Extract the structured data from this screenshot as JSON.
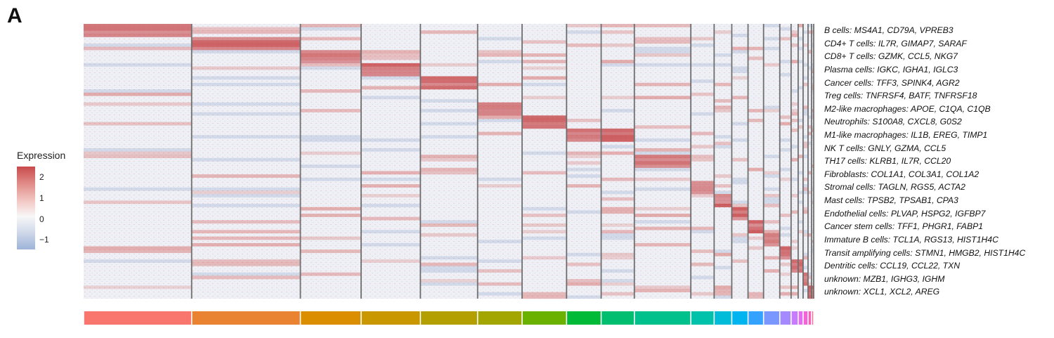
{
  "panel_label": "A",
  "chart_data": {
    "type": "heatmap",
    "title": "",
    "legend": {
      "title": "Expression",
      "ticks": [
        "2",
        "1",
        "0",
        "−1"
      ],
      "tick_values": [
        2,
        1,
        0,
        -1
      ],
      "range": [
        -1.5,
        2.5
      ],
      "colors": {
        "high": "#c84a4c",
        "mid": "#f7f7f7",
        "low": "#9db3d8"
      }
    },
    "rows": [
      "B cells: MS4A1, CD79A, VPREB3",
      "CD4+ T cells: IL7R, GIMAP7, SARAF",
      "CD8+ T cells: GZMK, CCL5, NKG7",
      "Plasma cells: IGKC, IGHA1, IGLC3",
      "Cancer cells: TFF3, SPINK4, AGR2",
      "Treg cells: TNFRSF4, BATF, TNFRSF18",
      "M2-like macrophages: APOE, C1QA, C1QB",
      "Neutrophils: S100A8, CXCL8, G0S2",
      "M1-like macrophages: IL1B, EREG, TIMP1",
      "NK T cells: GNLY, GZMA, CCL5",
      "TH17 cells: KLRB1, IL7R, CCL20",
      "Fibroblasts: COL1A1, COL3A1, COL1A2",
      "Stromal cells: TAGLN, RGS5, ACTA2",
      "Mast cells: TPSB2, TPSAB1, CPA3",
      "Endothelial cells: PLVAP, HSPG2, IGFBP7",
      "Cancer stem cells: TFF1, PHGR1, FABP1",
      "Immature B cells: TCL1A, RGS13, HIST1H4C",
      "Transit amplifying cells: STMN1, HMGB2, HIST1H4C",
      "Dentritic cells: CCL19, CCL22, TXN",
      "unknown: MZB1, IGHG3, IGHM",
      "unknown: XCL1, XCL2, AREG"
    ],
    "clusters": [
      {
        "index": 1,
        "relative_size": 153,
        "color": "#f8766d",
        "marker_row": 0
      },
      {
        "index": 2,
        "relative_size": 154,
        "color": "#ea8331",
        "marker_row": 1
      },
      {
        "index": 3,
        "relative_size": 86,
        "color": "#db8e00",
        "marker_row": 2
      },
      {
        "index": 4,
        "relative_size": 84,
        "color": "#c99800",
        "marker_row": 3
      },
      {
        "index": 5,
        "relative_size": 81,
        "color": "#b3a000",
        "marker_row": 4
      },
      {
        "index": 6,
        "relative_size": 63,
        "color": "#a3a500",
        "marker_row": 6
      },
      {
        "index": 7,
        "relative_size": 63,
        "color": "#6bb100",
        "marker_row": 7
      },
      {
        "index": 8,
        "relative_size": 49,
        "color": "#00ba38",
        "marker_row": 8
      },
      {
        "index": 9,
        "relative_size": 47,
        "color": "#00be70",
        "marker_row": 8
      },
      {
        "index": 10,
        "relative_size": 80,
        "color": "#00c08b",
        "marker_row": 10
      },
      {
        "index": 11,
        "relative_size": 33,
        "color": "#00c1aa",
        "marker_row": 12
      },
      {
        "index": 12,
        "relative_size": 25,
        "color": "#00bcd8",
        "marker_row": 13
      },
      {
        "index": 13,
        "relative_size": 23,
        "color": "#00b4f0",
        "marker_row": 14
      },
      {
        "index": 14,
        "relative_size": 22,
        "color": "#35a2ff",
        "marker_row": 15
      },
      {
        "index": 15,
        "relative_size": 23,
        "color": "#7997ff",
        "marker_row": 16
      },
      {
        "index": 16,
        "relative_size": 16,
        "color": "#a58aff",
        "marker_row": 17
      },
      {
        "index": 17,
        "relative_size": 10,
        "color": "#c77cff",
        "marker_row": 18
      },
      {
        "index": 18,
        "relative_size": 7,
        "color": "#e36cf0",
        "marker_row": 18
      },
      {
        "index": 19,
        "relative_size": 7,
        "color": "#f463d8",
        "marker_row": 19
      },
      {
        "index": 20,
        "relative_size": 5,
        "color": "#fb61b8",
        "marker_row": 20
      },
      {
        "index": 21,
        "relative_size": 3,
        "color": "#ff6c91",
        "marker_row": 20
      }
    ]
  }
}
